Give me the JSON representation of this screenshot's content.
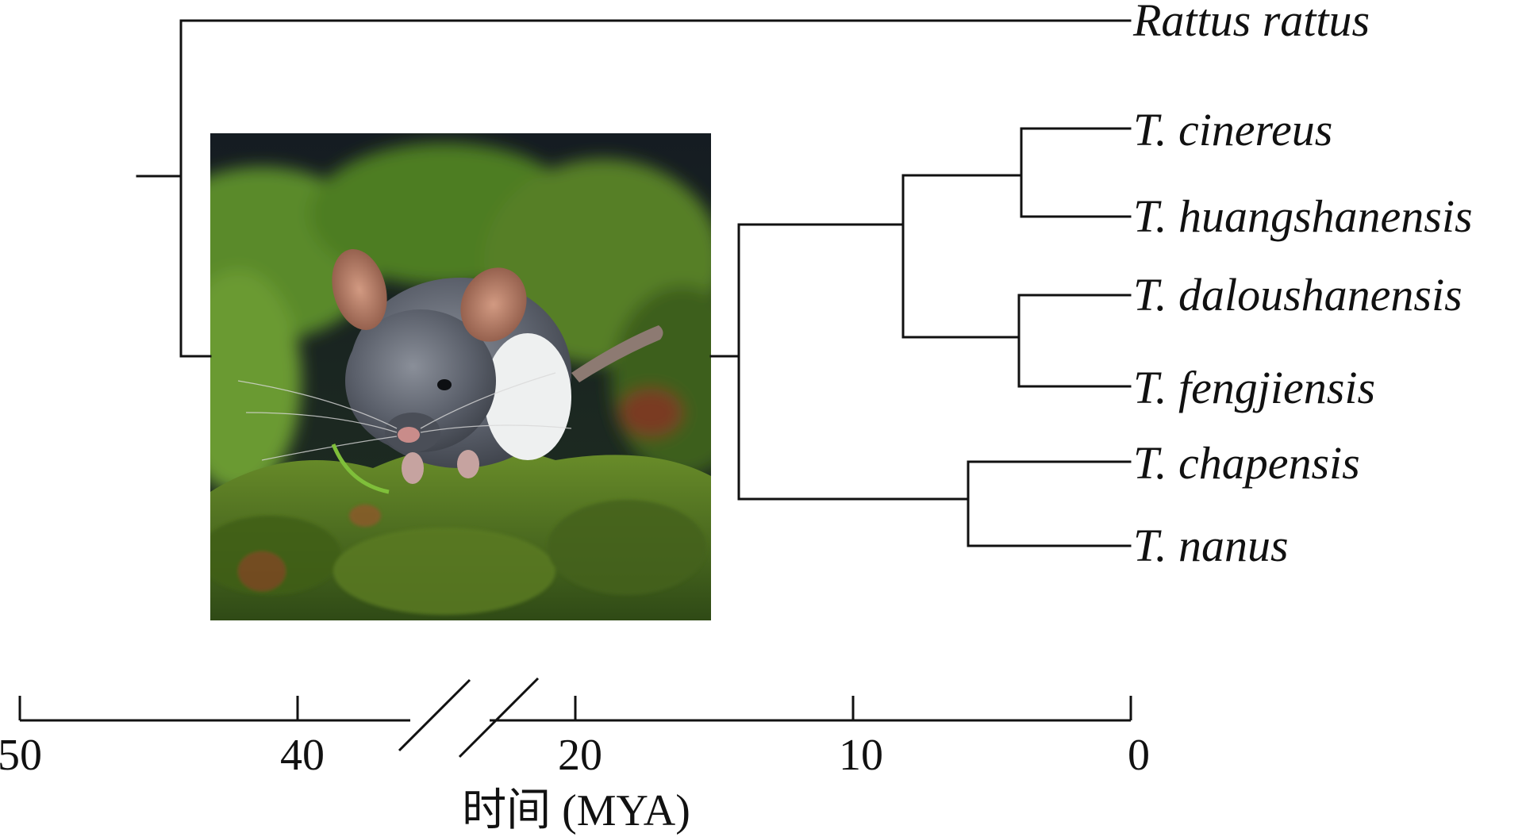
{
  "tree": {
    "taxa": [
      {
        "id": "rattus",
        "label": "Rattus rattus"
      },
      {
        "id": "cinereus",
        "label": "T. cinereus"
      },
      {
        "id": "huangshanensis",
        "label": "T. huangshanensis"
      },
      {
        "id": "daloushanensis",
        "label": "T. daloushanensis"
      },
      {
        "id": "fengjiensis",
        "label": "T. fengjiensis"
      },
      {
        "id": "chapensis",
        "label": "T. chapensis"
      },
      {
        "id": "nanus",
        "label": "T. nanus"
      }
    ]
  },
  "photo": {
    "subject": "mouse-like small mammal on moss",
    "colors": {
      "background": "#1a2320",
      "moss": "#4f7a22",
      "fur": "#5e6470",
      "ears": "#b07a62"
    }
  },
  "axis": {
    "ticks": [
      "50",
      "40",
      "20",
      "10",
      "0"
    ],
    "label": "时间 (MYA)",
    "break": true
  }
}
